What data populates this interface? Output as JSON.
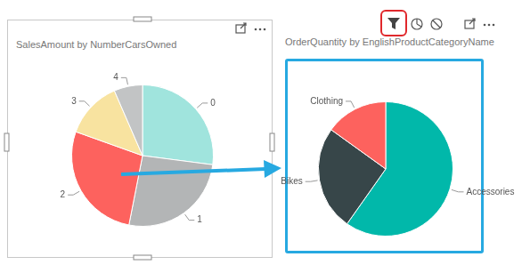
{
  "chart_data": [
    {
      "type": "pie",
      "title": "SalesAmount by NumberCarsOwned",
      "categories": [
        "0",
        "1",
        "2",
        "3",
        "4"
      ],
      "values": [
        7900000,
        7600000,
        8000000,
        3800000,
        1900000
      ],
      "colors": [
        "#a0e4dd",
        "#b3b5b6",
        "#fd625e",
        "#f8e3a0",
        "#c2c4c5"
      ]
    },
    {
      "type": "pie",
      "title": "OrderQuantity by EnglishProductCategoryName",
      "categories": [
        "Accessories",
        "Bikes",
        "Clothing"
      ],
      "values": [
        36092,
        15205,
        9101
      ],
      "colors": [
        "#01b8aa",
        "#374649",
        "#fd625e"
      ]
    }
  ]
}
